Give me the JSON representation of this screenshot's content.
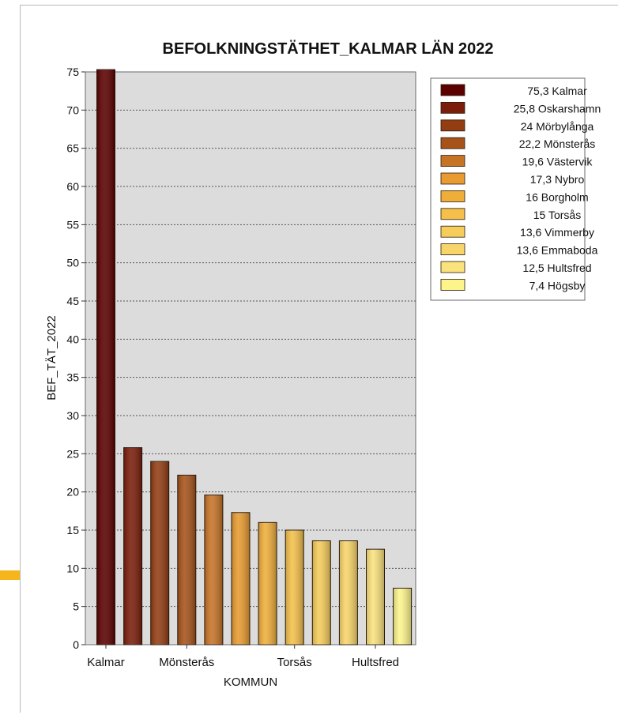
{
  "chart_data": {
    "type": "bar",
    "title": "BEFOLKNINGSTÄTHET_KALMAR LÄN 2022",
    "xlabel": "KOMMUN",
    "ylabel": "BEF_TÄT_2022",
    "ylim": [
      0,
      75
    ],
    "yticks": [
      0,
      5,
      10,
      15,
      20,
      25,
      30,
      35,
      40,
      45,
      50,
      55,
      60,
      65,
      70,
      75
    ],
    "grid": true,
    "legend_position": "top-right",
    "categories": [
      "Kalmar",
      "Oskarshamn",
      "Mörbylånga",
      "Mönsterås",
      "Västervik",
      "Nybro",
      "Borgholm",
      "Torsås",
      "Vimmerby",
      "Emmaboda",
      "Hultsfred",
      "Högsby"
    ],
    "values": [
      75.3,
      25.8,
      24,
      22.2,
      19.6,
      17.3,
      16,
      15,
      13.6,
      13.6,
      12.5,
      7.4
    ],
    "colors": [
      "#5c0000",
      "#7a1d0a",
      "#923d12",
      "#a65219",
      "#c77326",
      "#e89b30",
      "#efae3a",
      "#f4c04a",
      "#f6cc5a",
      "#f8d56a",
      "#fae27c",
      "#fdf58c"
    ],
    "xtick_labels": [
      {
        "category": "Kalmar",
        "text": "Kalmar"
      },
      {
        "category": "Mönsterås",
        "text": "Mönsterås"
      },
      {
        "category": "Torsås",
        "text": "Torsås"
      },
      {
        "category": "Hultsfred",
        "text": "Hultsfred"
      }
    ],
    "legend": [
      {
        "label": "75,3 Kalmar"
      },
      {
        "label": "25,8 Oskarshamn"
      },
      {
        "label": "24 Mörbylånga"
      },
      {
        "label": "22,2 Mönsterås"
      },
      {
        "label": "19,6 Västervik"
      },
      {
        "label": "17,3 Nybro"
      },
      {
        "label": "16 Borgholm"
      },
      {
        "label": "15 Torsås"
      },
      {
        "label": "13,6 Vimmerby"
      },
      {
        "label": "13,6 Emmaboda"
      },
      {
        "label": "12,5 Hultsfred"
      },
      {
        "label": "7,4 Högsby"
      }
    ]
  }
}
